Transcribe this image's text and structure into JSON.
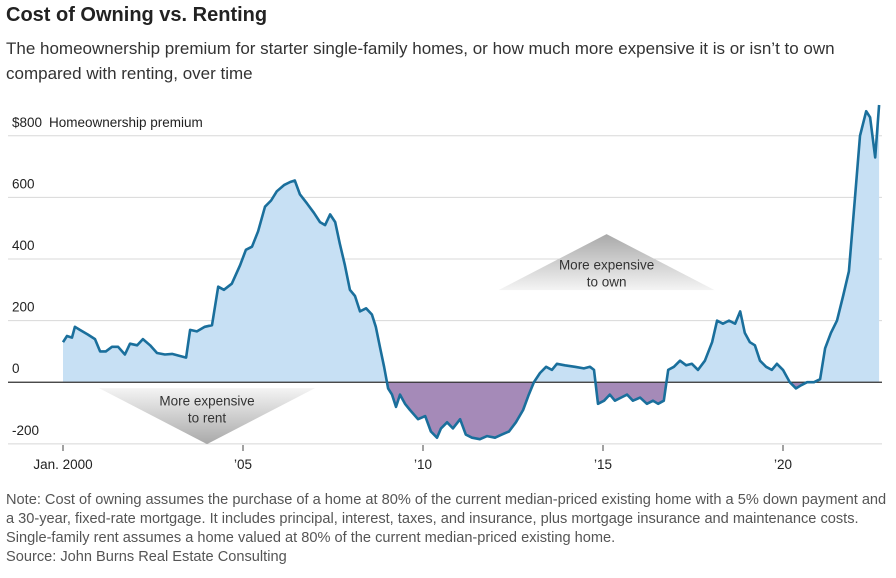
{
  "chart_data": {
    "type": "area",
    "title": "Cost of Owning vs. Renting",
    "subtitle": "The homeownership premium for starter single-family homes, or how much more expensive it is or isn’t to own compared with renting, over time",
    "y_axis_label": "Homeownership premium",
    "x": [
      2000,
      2000.11,
      2000.25,
      2000.33,
      2000.47,
      2000.69,
      2000.89,
      2001.03,
      2001.19,
      2001.36,
      2001.53,
      2001.72,
      2001.86,
      2002.06,
      2002.22,
      2002.42,
      2002.61,
      2002.83,
      2003.03,
      2003.25,
      2003.42,
      2003.53,
      2003.72,
      2003.94,
      2004.14,
      2004.31,
      2004.47,
      2004.69,
      2004.92,
      2005.08,
      2005.25,
      2005.42,
      2005.61,
      2005.78,
      2005.94,
      2006.14,
      2006.31,
      2006.44,
      2006.58,
      2006.78,
      2006.97,
      2007.14,
      2007.28,
      2007.42,
      2007.56,
      2007.69,
      2007.83,
      2007.97,
      2008.11,
      2008.25,
      2008.42,
      2008.58,
      2008.69,
      2008.81,
      2008.92,
      2009.03,
      2009.14,
      2009.25,
      2009.36,
      2009.5,
      2009.64,
      2009.86,
      2010.06,
      2010.22,
      2010.39,
      2010.5,
      2010.67,
      2010.83,
      2011.03,
      2011.19,
      2011.36,
      2011.58,
      2011.78,
      2012.0,
      2012.19,
      2012.39,
      2012.58,
      2012.78,
      2012.94,
      2013.08,
      2013.25,
      2013.42,
      2013.58,
      2013.72,
      2013.94,
      2014.22,
      2014.47,
      2014.64,
      2014.75,
      2014.86,
      2015.03,
      2015.19,
      2015.33,
      2015.5,
      2015.67,
      2015.83,
      2016.03,
      2016.22,
      2016.39,
      2016.53,
      2016.69,
      2016.81,
      2016.97,
      2017.14,
      2017.31,
      2017.47,
      2017.64,
      2017.83,
      2018.03,
      2018.17,
      2018.33,
      2018.5,
      2018.67,
      2018.81,
      2018.94,
      2019.08,
      2019.22,
      2019.36,
      2019.53,
      2019.69,
      2019.83,
      2020.0,
      2020.19,
      2020.36,
      2020.5,
      2020.67,
      2020.86,
      2021.03,
      2021.17,
      2021.33,
      2021.5,
      2021.67,
      2021.83,
      2022.0,
      2022.14,
      2022.31,
      2022.42,
      2022.56,
      2022.67
    ],
    "series": [
      {
        "name": "Homeownership premium",
        "color": "#1a6f9c",
        "positive_fill": "#c7e0f4",
        "negative_fill": "#a58ab8",
        "values": [
          130,
          150,
          145,
          180,
          170,
          155,
          140,
          100,
          100,
          115,
          115,
          90,
          125,
          120,
          140,
          120,
          95,
          90,
          92,
          85,
          80,
          170,
          165,
          180,
          185,
          310,
          300,
          320,
          380,
          430,
          440,
          490,
          570,
          590,
          620,
          640,
          650,
          655,
          610,
          580,
          550,
          520,
          510,
          545,
          520,
          450,
          380,
          300,
          280,
          230,
          240,
          220,
          180,
          110,
          50,
          -20,
          -40,
          -80,
          -40,
          -70,
          -90,
          -120,
          -110,
          -160,
          -180,
          -150,
          -130,
          -150,
          -120,
          -170,
          -180,
          -185,
          -175,
          -180,
          -170,
          -160,
          -130,
          -90,
          -40,
          0,
          30,
          50,
          40,
          60,
          55,
          50,
          45,
          50,
          40,
          -70,
          -60,
          -40,
          -60,
          -50,
          -40,
          -60,
          -50,
          -70,
          -60,
          -70,
          -60,
          40,
          50,
          70,
          55,
          60,
          40,
          70,
          130,
          200,
          190,
          200,
          190,
          230,
          160,
          130,
          120,
          70,
          50,
          40,
          60,
          40,
          0,
          -20,
          -10,
          0,
          0,
          10,
          110,
          160,
          200,
          280,
          360,
          600,
          800,
          880,
          860,
          730,
          900
        ]
      }
    ],
    "xlim": [
      2000,
      2022.75
    ],
    "ylim": [
      -220,
      900
    ],
    "xticks": [
      {
        "value": 2000,
        "label": "Jan. 2000"
      },
      {
        "value": 2005,
        "label": "’05"
      },
      {
        "value": 2010,
        "label": "’10"
      },
      {
        "value": 2015,
        "label": "’15"
      },
      {
        "value": 2020,
        "label": "’20"
      }
    ],
    "yticks": [
      -200,
      0,
      200,
      400,
      600,
      {
        "value": 800,
        "label": "$800"
      }
    ],
    "grid": true,
    "annotations": [
      {
        "lines": [
          "More expensive",
          "to rent"
        ],
        "x": 2004,
        "y": -110,
        "direction": "down"
      },
      {
        "lines": [
          "More expensive",
          "to own"
        ],
        "x": 2015.1,
        "y": 390,
        "direction": "up"
      }
    ],
    "note": "Note: Cost of owning assumes the purchase of a home at 80% of the current median-priced existing home with a 5% down payment and a 30-year, fixed-rate mortgage. It includes principal, interest, taxes, and insurance, plus mortgage insurance and maintenance costs. Single-family rent assumes a home valued at 80% of the current median-priced existing home.",
    "source": "Source: John Burns Real Estate Consulting"
  }
}
